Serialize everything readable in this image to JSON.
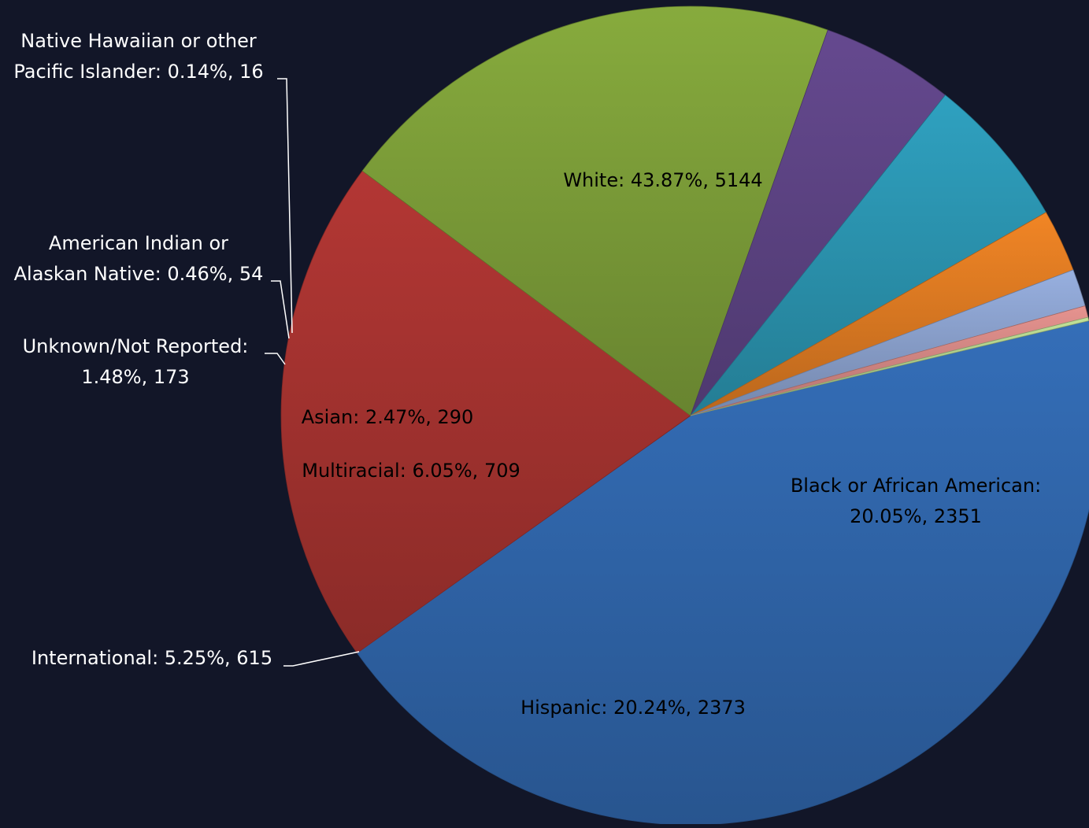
{
  "colors": {
    "background": "#121628"
  },
  "chart_data": {
    "type": "pie",
    "title": "",
    "start_angle_deg": 76.6,
    "slices": [
      {
        "category": "White",
        "percent": "43.87%",
        "value": 5144,
        "color": "#3168ae",
        "text_color": "dark"
      },
      {
        "category": "Black or African American",
        "percent": "20.05%",
        "value": 2351,
        "color": "#a93431",
        "text_color": "dark"
      },
      {
        "category": "Hispanic",
        "percent": "20.24%",
        "value": 2373,
        "color": "#7fa13a",
        "text_color": "dark"
      },
      {
        "category": "International",
        "percent": "5.25%",
        "value": 615,
        "color": "#5f4587",
        "text_color": "light"
      },
      {
        "category": "Multiracial",
        "percent": "6.05%",
        "value": 709,
        "color": "#2c98b5",
        "text_color": "dark"
      },
      {
        "category": "Asian",
        "percent": "2.47%",
        "value": 290,
        "color": "#e37d23",
        "text_color": "dark"
      },
      {
        "category": "Unknown/Not Reported",
        "percent": "1.48%",
        "value": 173,
        "color": "#8ea5d2",
        "text_color": "light"
      },
      {
        "category": "American Indian or Alaskan Native",
        "percent": "0.46%",
        "value": 54,
        "color": "#d98b87",
        "text_color": "light"
      },
      {
        "category": "Native Hawaiian or other Pacific Islander",
        "percent": "0.14%",
        "value": 16,
        "color": "#b6d48f",
        "text_color": "light"
      }
    ],
    "labels": [
      {
        "lines": [
          "White: 43.87%, 5144"
        ]
      },
      {
        "lines": [
          "Black or African American:",
          "20.05%, 2351"
        ]
      },
      {
        "lines": [
          "Hispanic: 20.24%, 2373"
        ]
      },
      {
        "lines": [
          "International: 5.25%, 615"
        ]
      },
      {
        "lines": [
          "Multiracial: 6.05%, 709"
        ]
      },
      {
        "lines": [
          "Asian: 2.47%, 290"
        ]
      },
      {
        "lines": [
          "Unknown/Not Reported:",
          "1.48%, 173"
        ]
      },
      {
        "lines": [
          "American Indian or",
          "Alaskan Native: 0.46%, 54"
        ]
      },
      {
        "lines": [
          "Native Hawaiian or other",
          "Pacific Islander: 0.14%, 16"
        ]
      }
    ]
  }
}
